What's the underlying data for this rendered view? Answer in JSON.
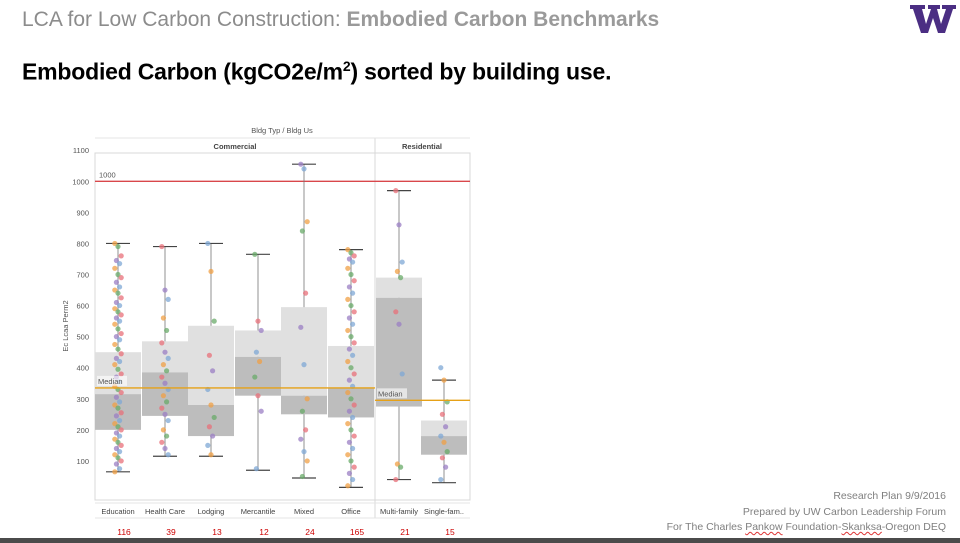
{
  "slide": {
    "title_light": "LCA for Low Carbon Construction: ",
    "title_bold": "Embodied Carbon Benchmarks",
    "headline_pre": "Embodied Carbon (kgCO2e/m",
    "headline_sup": "2",
    "headline_post": ") sorted by building use",
    "headline_period": ".",
    "footer": {
      "line1": "Research Plan 9/9/2016",
      "line2": "Prepared by UW Carbon Leadership Forum",
      "line3_a": "For The Charles ",
      "line3_b": "Pankow",
      "line3_c": " Foundation-",
      "line3_d": "Skanksa",
      "line3_e": "-Oregon DEQ"
    },
    "colors": {
      "logo": "#4b2e83",
      "reference_line": "#d9474b",
      "median_line": "#e6a117",
      "count_text": "#cc0000"
    }
  },
  "chart_data": {
    "type": "boxplot",
    "header": "Bldg Typ  /  Bldg Us",
    "ylabel": "Ec Lcaa Perm2",
    "ylim": [
      0,
      1150
    ],
    "yticks": [
      100,
      200,
      300,
      400,
      500,
      600,
      700,
      800,
      900,
      1000,
      1100
    ],
    "groups": [
      {
        "name": "Commercial",
        "categories": [
          "Education",
          "Health Care",
          "Lodging",
          "Mercantile",
          "Mixed",
          "Office"
        ],
        "median_line": 335
      },
      {
        "name": "Residential",
        "categories": [
          "Multi-family",
          "Single-fam.."
        ],
        "median_line": 295
      }
    ],
    "reference_line": {
      "value": 1000,
      "label": "1000"
    },
    "median_label": "Median",
    "categories": [
      "Education",
      "Health Care",
      "Lodging",
      "Mercantile",
      "Mixed",
      "Office",
      "Multi-family",
      "Single-fam.."
    ],
    "counts": [
      116,
      39,
      13,
      12,
      24,
      165,
      21,
      15
    ],
    "boxes": [
      {
        "min": 65,
        "q1": 200,
        "median": 315,
        "q3": 450,
        "max": 800
      },
      {
        "min": 115,
        "q1": 245,
        "median": 385,
        "q3": 485,
        "max": 790
      },
      {
        "min": 115,
        "q1": 180,
        "median": 280,
        "q3": 535,
        "max": 800
      },
      {
        "min": 70,
        "q1": 310,
        "median": 435,
        "q3": 520,
        "max": 765
      },
      {
        "min": 45,
        "q1": 250,
        "median": 310,
        "q3": 595,
        "max": 1055
      },
      {
        "min": 15,
        "q1": 240,
        "median": 335,
        "q3": 470,
        "max": 780
      },
      {
        "min": 40,
        "q1": 275,
        "median": 625,
        "q3": 690,
        "max": 970
      },
      {
        "min": 30,
        "q1": 120,
        "median": 180,
        "q3": 230,
        "max": 360
      }
    ],
    "point_colors": [
      "#f0a046",
      "#e8707a",
      "#7fa8d6",
      "#6aab6a",
      "#9b7fc4"
    ],
    "points": [
      [
        800,
        790,
        760,
        745,
        735,
        720,
        700,
        690,
        675,
        660,
        650,
        640,
        625,
        610,
        600,
        590,
        580,
        570,
        560,
        550,
        540,
        525,
        510,
        500,
        490,
        475,
        460,
        445,
        430,
        420,
        410,
        395,
        380,
        370,
        355,
        340,
        330,
        320,
        305,
        290,
        280,
        270,
        255,
        245,
        230,
        220,
        210,
        200,
        190,
        180,
        170,
        160,
        150,
        140,
        130,
        120,
        110,
        100,
        90,
        75,
        65
      ],
      [
        790,
        650,
        620,
        560,
        520,
        480,
        450,
        430,
        410,
        390,
        370,
        350,
        330,
        310,
        290,
        270,
        250,
        230,
        200,
        180,
        160,
        140,
        120
      ],
      [
        800,
        710,
        550,
        440,
        390,
        330,
        280,
        240,
        210,
        180,
        150,
        120
      ],
      [
        765,
        550,
        520,
        450,
        420,
        370,
        310,
        260,
        75
      ],
      [
        1055,
        1040,
        870,
        840,
        640,
        530,
        410,
        300,
        260,
        200,
        170,
        130,
        100,
        50
      ],
      [
        780,
        770,
        760,
        750,
        740,
        720,
        700,
        680,
        660,
        640,
        620,
        600,
        580,
        560,
        540,
        520,
        500,
        480,
        460,
        440,
        420,
        400,
        380,
        360,
        340,
        320,
        300,
        280,
        260,
        240,
        220,
        200,
        180,
        160,
        140,
        120,
        100,
        80,
        60,
        40,
        20
      ],
      [
        970,
        860,
        740,
        710,
        690,
        580,
        540,
        380,
        90,
        80,
        40
      ],
      [
        400,
        360,
        290,
        250,
        210,
        180,
        160,
        130,
        110,
        80,
        40
      ]
    ]
  }
}
